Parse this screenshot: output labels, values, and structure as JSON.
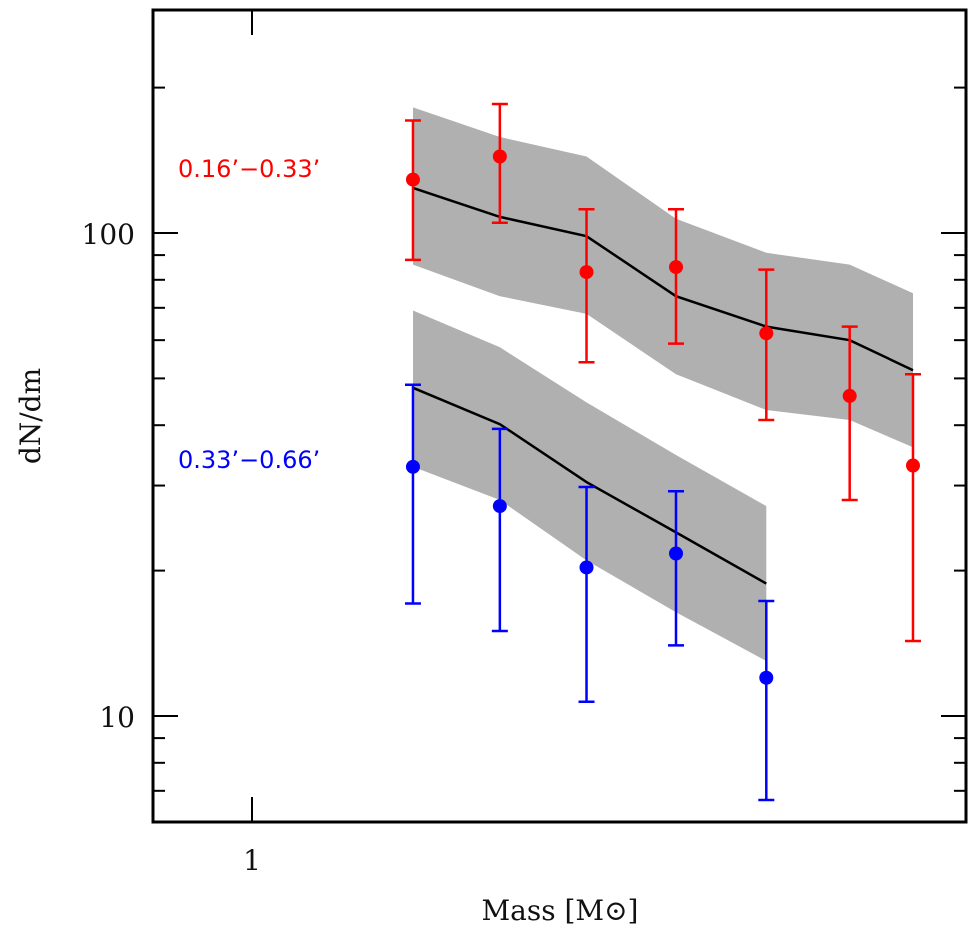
{
  "chart_data": {
    "type": "scatter",
    "title": "",
    "xlabel": "Mass [M⊙]",
    "ylabel": "dN/dm",
    "xscale": "log",
    "yscale": "log",
    "xlim": [
      0.87,
      2.69
    ],
    "ylim": [
      6.0,
      290
    ],
    "x_ticks": [
      {
        "value": 1,
        "label": "1"
      }
    ],
    "y_ticks": [
      {
        "value": 10,
        "label": "10"
      },
      {
        "value": 100,
        "label": "100"
      }
    ],
    "y_minor_ticks": [
      7,
      8,
      9,
      20,
      30,
      40,
      50,
      60,
      70,
      80,
      90,
      200
    ],
    "grid": false,
    "series": [
      {
        "name": "0.16’−0.33’",
        "label": "0.16’−0.33’",
        "color": "#ff0000",
        "x": [
          1.25,
          1.41,
          1.59,
          1.8,
          2.04,
          2.29,
          2.5
        ],
        "y": [
          129,
          144,
          83,
          85,
          62,
          46,
          33
        ],
        "y_err_high": [
          171,
          185,
          112,
          112,
          84,
          64,
          51
        ],
        "y_err_low": [
          88,
          105,
          54,
          59,
          41,
          28,
          14.3
        ],
        "model": [
          124,
          108,
          98.5,
          74,
          64,
          60,
          52
        ],
        "model_band_high": [
          182,
          158,
          144,
          107,
          91,
          86,
          75
        ],
        "model_band_low": [
          86,
          74,
          68,
          51,
          43,
          41,
          36
        ]
      },
      {
        "name": "0.33’−0.66’",
        "label": "0.33’−0.66’",
        "color": "#0000ff",
        "x": [
          1.25,
          1.41,
          1.59,
          1.8,
          2.04
        ],
        "y": [
          32.8,
          27.2,
          20.3,
          21.7,
          12.0
        ],
        "y_err_high": [
          48.5,
          39.3,
          29.8,
          29.2,
          17.3
        ],
        "y_err_low": [
          17.1,
          15.0,
          10.7,
          14.0,
          6.7
        ],
        "model": [
          47.8,
          40.2,
          30.5,
          24.0,
          18.8
        ],
        "model_band_high": [
          69.1,
          58.0,
          44.6,
          34.7,
          27.2
        ],
        "model_band_low": [
          32.8,
          28.0,
          21.0,
          16.4,
          13.0
        ]
      }
    ],
    "band_color": "#b0b0b0",
    "model_line_color": "#000000"
  }
}
